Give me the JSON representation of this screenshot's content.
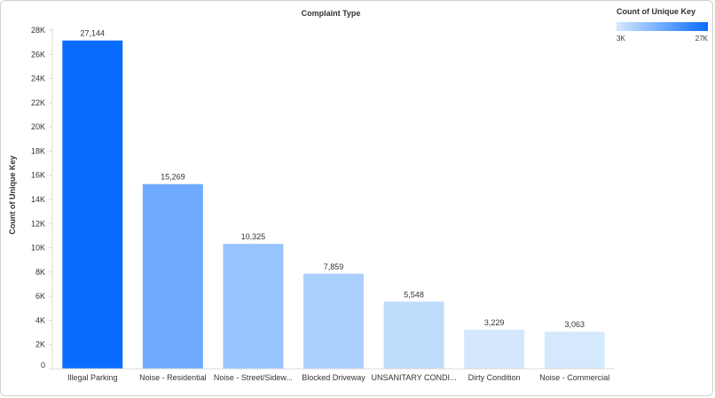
{
  "chart_data": {
    "type": "bar",
    "title": "Complaint Type",
    "xlabel": "",
    "ylabel": "Count of Unique Key",
    "categories": [
      "Illegal Parking",
      "Noise - Residential",
      "Noise - Street/Sidew...",
      "Blocked Driveway",
      "UNSANITARY CONDI...",
      "Dirty Condition",
      "Noise - Commercial"
    ],
    "values": [
      27144,
      15269,
      10325,
      7859,
      5548,
      3229,
      3063
    ],
    "value_labels": [
      "27,144",
      "15,269",
      "10,325",
      "7,859",
      "5,548",
      "3,229",
      "3,063"
    ],
    "ylim": [
      0,
      28000
    ],
    "yticks": [
      0,
      2000,
      4000,
      6000,
      8000,
      10000,
      12000,
      14000,
      16000,
      18000,
      20000,
      22000,
      24000,
      26000,
      28000
    ],
    "ytick_labels": [
      "0",
      "2K",
      "4K",
      "6K",
      "8K",
      "10K",
      "12K",
      "14K",
      "16K",
      "18K",
      "20K",
      "22K",
      "24K",
      "26K",
      "28K"
    ],
    "grid": false,
    "legend": {
      "title": "Count of Unique Key",
      "placement": "top-right",
      "min_label": "3K",
      "max_label": "27K",
      "min_value": 3063,
      "max_value": 27144,
      "color_low": "#d4e9fd",
      "color_high": "#0a6cff"
    }
  }
}
